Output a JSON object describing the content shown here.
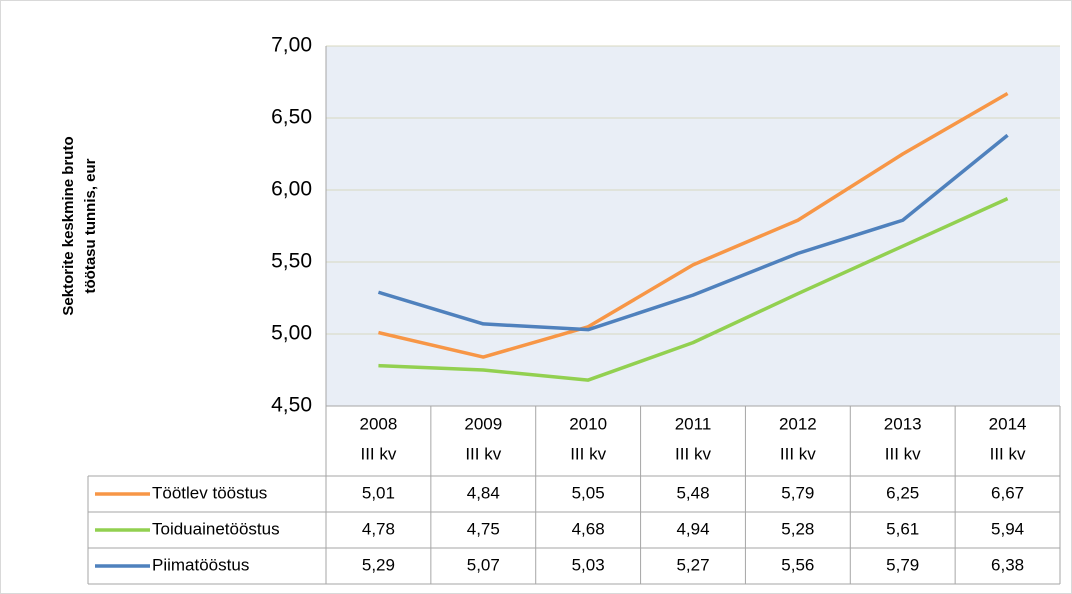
{
  "chart_data": {
    "type": "line",
    "ylabel": [
      "Sektorite keskmine bruto",
      "töötasu tunnis, eur"
    ],
    "categories": [
      [
        "2008",
        "III kv"
      ],
      [
        "2009",
        "III kv"
      ],
      [
        "2010",
        "III kv"
      ],
      [
        "2011",
        "III kv"
      ],
      [
        "2012",
        "III kv"
      ],
      [
        "2013",
        "III kv"
      ],
      [
        "2014",
        "III kv"
      ]
    ],
    "series": [
      {
        "name": "Töötlev tööstus",
        "color": "#f79646",
        "values": [
          5.01,
          4.84,
          5.05,
          5.48,
          5.79,
          6.25,
          6.67
        ],
        "value_labels": [
          "5,01",
          "4,84",
          "5,05",
          "5,48",
          "5,79",
          "6,25",
          "6,67"
        ]
      },
      {
        "name": "Toiduainetööstus",
        "color": "#92d050",
        "values": [
          4.78,
          4.75,
          4.68,
          4.94,
          5.28,
          5.61,
          5.94
        ],
        "value_labels": [
          "4,78",
          "4,75",
          "4,68",
          "4,94",
          "5,28",
          "5,61",
          "5,94"
        ]
      },
      {
        "name": "Piimatööstus",
        "color": "#4f81bd",
        "values": [
          5.29,
          5.07,
          5.03,
          5.27,
          5.56,
          5.79,
          6.38
        ],
        "value_labels": [
          "5,29",
          "5,07",
          "5,03",
          "5,27",
          "5,56",
          "5,79",
          "6,38"
        ]
      }
    ],
    "ylim": [
      4.5,
      7.0
    ],
    "yticks": [
      {
        "value": 4.5,
        "label": "4,50"
      },
      {
        "value": 5.0,
        "label": "5,00"
      },
      {
        "value": 5.5,
        "label": "5,50"
      },
      {
        "value": 6.0,
        "label": "6,00"
      },
      {
        "value": 6.5,
        "label": "6,50"
      },
      {
        "value": 7.0,
        "label": "7,00"
      }
    ],
    "grid": true
  }
}
